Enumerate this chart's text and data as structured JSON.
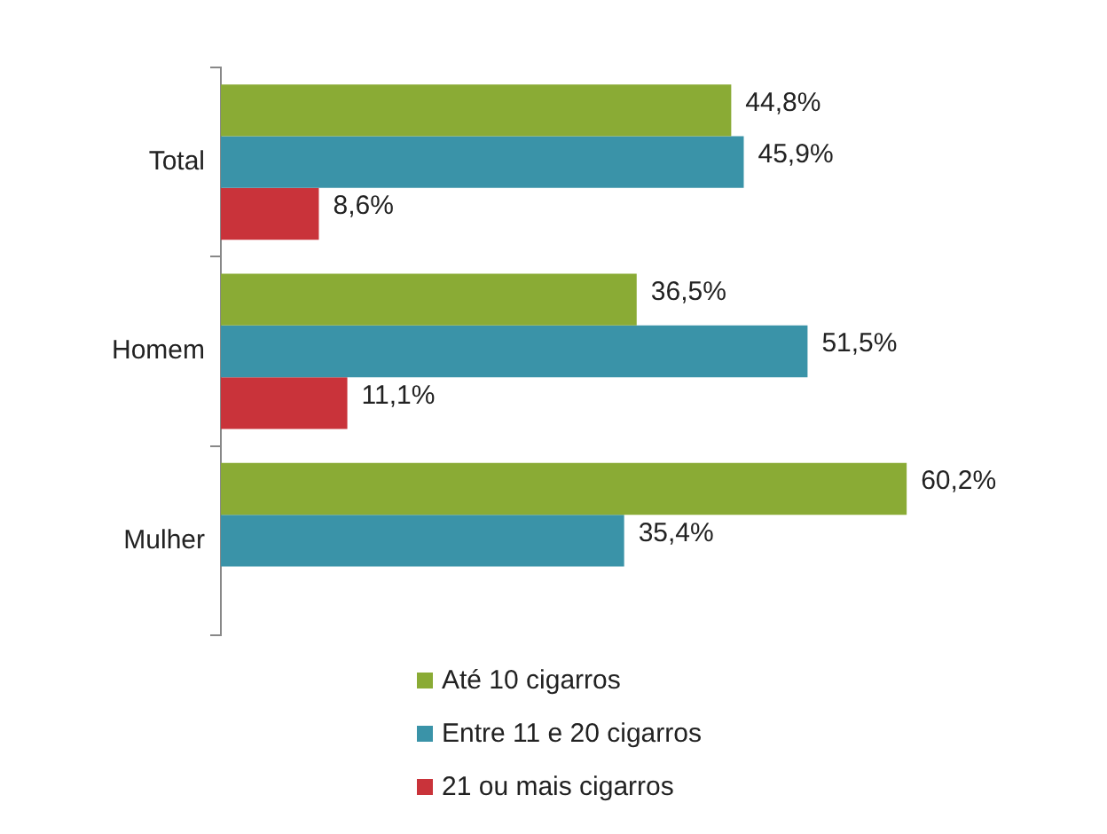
{
  "chart_data": {
    "type": "bar",
    "orientation": "horizontal",
    "categories": [
      "Total",
      "Homem",
      "Mulher"
    ],
    "series": [
      {
        "name": "Até 10 cigarros",
        "color": "#8aab35",
        "values": [
          44.8,
          36.5,
          60.2
        ],
        "value_labels": [
          "44,8%",
          "36,5%",
          "60,2%"
        ]
      },
      {
        "name": "Entre 11 e 20 cigarros",
        "color": "#3a93a8",
        "values": [
          45.9,
          51.5,
          35.4
        ],
        "value_labels": [
          "45,9%",
          "51,5%",
          "35,4%"
        ]
      },
      {
        "name": "21 ou mais cigarros",
        "color": "#c9333a",
        "values": [
          8.6,
          11.1,
          null
        ],
        "value_labels": [
          "8,6%",
          "11,1%",
          null
        ]
      }
    ],
    "tick_labels": "y",
    "grid": false,
    "legend": "bottom"
  }
}
